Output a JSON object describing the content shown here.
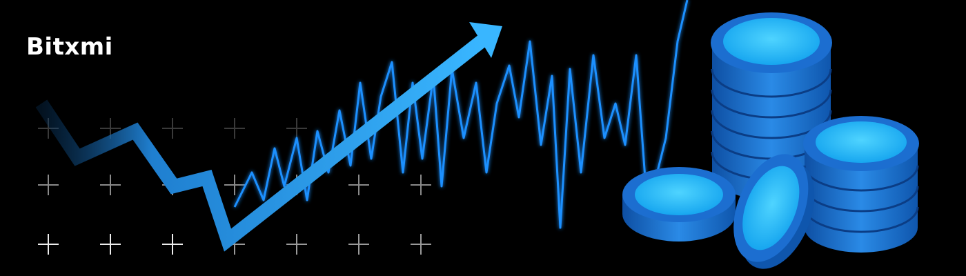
{
  "brand": {
    "name": "Bitxmi"
  },
  "colors": {
    "background": "#000000",
    "accent": "#2fa8ff",
    "coin_face": "#20b8ff",
    "coin_edge": "#1b6fd6",
    "coin_dark": "#0d3f8a"
  },
  "icons": [
    "plus-grid",
    "trend-arrow-icon",
    "waveform",
    "coin-stack"
  ]
}
